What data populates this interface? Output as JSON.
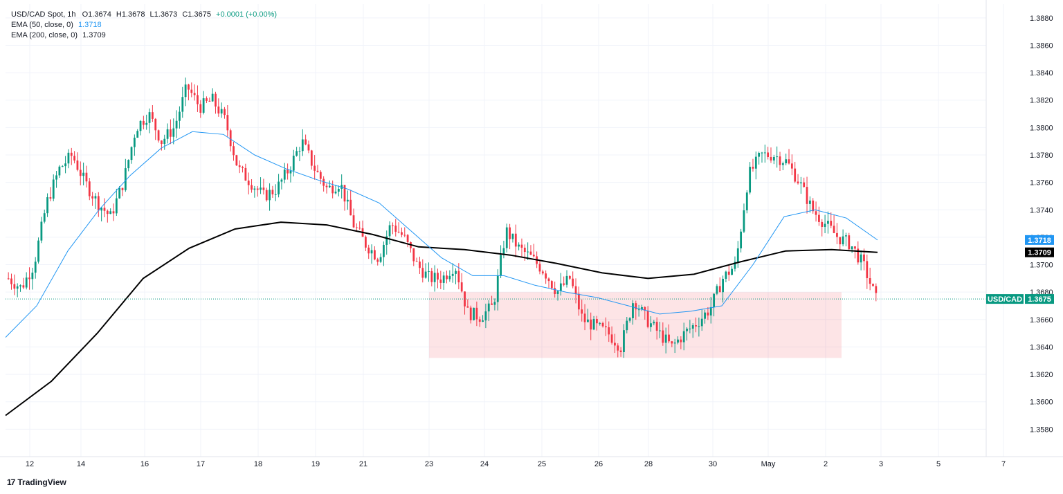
{
  "header": {
    "symbol": "USD/CAD Spot, 1h",
    "ohlc": {
      "o": "O1.3674",
      "h": "H1.3678",
      "l": "L1.3673",
      "c": "C1.3675",
      "chg": "+0.0001 (+0.00%)"
    },
    "ema50_label": "EMA (50, close, 0)",
    "ema50_value": "1.3718",
    "ema200_label": "EMA (200, close, 0)",
    "ema200_value": "1.3709"
  },
  "watermark": {
    "logo": "17",
    "text": "TradingView"
  },
  "colors": {
    "up": "#089981",
    "down": "#f23645",
    "ema50": "#2196f3",
    "ema200": "#000000",
    "zone": "#f2364522",
    "last": "#089981"
  },
  "chart_data": {
    "type": "candlestick",
    "timeframe": "1h",
    "ylim": [
      1.356,
      1.389
    ],
    "y_ticks": [
      "1.3580",
      "1.3600",
      "1.3620",
      "1.3640",
      "1.3660",
      "1.3680",
      "1.3700",
      "1.3720",
      "1.3740",
      "1.3760",
      "1.3780",
      "1.3800",
      "1.3820",
      "1.3840",
      "1.3860",
      "1.3880"
    ],
    "x_ticks": [
      "12",
      "14",
      "16",
      "17",
      "18",
      "19",
      "21",
      "23",
      "24",
      "25",
      "26",
      "28",
      "30",
      "May",
      "2",
      "3",
      "5",
      "7"
    ],
    "price_tags": [
      {
        "label": "",
        "value": "1.3718",
        "price": 1.3718,
        "color": "#2196f3"
      },
      {
        "label": "",
        "value": "1.3709",
        "price": 1.3709,
        "color": "#000000"
      },
      {
        "label": "USD/CAD",
        "value": "1.3675",
        "price": 1.3675,
        "color": "#089981"
      }
    ],
    "zone": {
      "price_low": 1.3632,
      "price_high": 1.368
    },
    "close_path": [
      1.369,
      1.3683,
      1.37,
      1.3745,
      1.377,
      1.378,
      1.376,
      1.3745,
      1.3735,
      1.376,
      1.38,
      1.381,
      1.379,
      1.38,
      1.383,
      1.3815,
      1.382,
      1.3805,
      1.377,
      1.376,
      1.375,
      1.3755,
      1.377,
      1.379,
      1.377,
      1.3755,
      1.376,
      1.373,
      1.3715,
      1.3705,
      1.373,
      1.372,
      1.37,
      1.369,
      1.369,
      1.37,
      1.3665,
      1.3662,
      1.367,
      1.3725,
      1.3712,
      1.3705,
      1.3695,
      1.368,
      1.369,
      1.366,
      1.3655,
      1.365,
      1.364,
      1.3675,
      1.366,
      1.365,
      1.364,
      1.365,
      1.3658,
      1.3668,
      1.369,
      1.37,
      1.3765,
      1.378,
      1.378,
      1.3775,
      1.376,
      1.374,
      1.373,
      1.372,
      1.3715,
      1.37,
      1.3675
    ],
    "ema50": [
      1.3647,
      1.367,
      1.371,
      1.374,
      1.3765,
      1.3785,
      1.3797,
      1.3795,
      1.378,
      1.377,
      1.3762,
      1.3755,
      1.3745,
      1.3725,
      1.3705,
      1.3692,
      1.3692,
      1.3685,
      1.368,
      1.3676,
      1.367,
      1.3664,
      1.3666,
      1.367,
      1.37,
      1.3735,
      1.374,
      1.3734,
      1.3718
    ],
    "ema200": [
      1.359,
      1.3615,
      1.365,
      1.369,
      1.3712,
      1.3726,
      1.3731,
      1.3729,
      1.3722,
      1.3713,
      1.3711,
      1.3707,
      1.3701,
      1.3694,
      1.369,
      1.3693,
      1.3702,
      1.371,
      1.3711,
      1.3709
    ]
  }
}
